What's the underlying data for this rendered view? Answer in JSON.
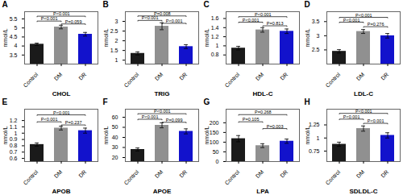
{
  "chart_data": [
    {
      "type": "bar",
      "title": "A",
      "xlabel": "CHOL",
      "ylabel": "mmol/L",
      "categories": [
        "Control",
        "DM",
        "DR"
      ],
      "values": [
        4.1,
        5.05,
        4.65
      ],
      "errors": [
        0.06,
        0.1,
        0.1
      ],
      "colors": [
        "#1a1a1a",
        "#909090",
        "#1212cc"
      ],
      "ylim": [
        3.0,
        5.9
      ],
      "yticks": [
        3.5,
        4,
        4.5,
        5,
        5.5
      ],
      "annotations": [
        {
          "text": "P<0.001",
          "from": "Control",
          "to": "DM",
          "y": 5.38
        },
        {
          "text": "P<0.001",
          "from": "Control",
          "to": "DR",
          "y": 5.65
        },
        {
          "text": "P=0.059",
          "from": "DM",
          "to": "DR",
          "y": 5.22
        }
      ]
    },
    {
      "type": "bar",
      "title": "B",
      "xlabel": "TRIG",
      "ylabel": "mmol/L",
      "categories": [
        "Control",
        "DM",
        "DR"
      ],
      "values": [
        1.35,
        2.75,
        1.7
      ],
      "errors": [
        0.08,
        0.18,
        0.1
      ],
      "colors": [
        "#1a1a1a",
        "#909090",
        "#1212cc"
      ],
      "ylim": [
        0.8,
        3.5
      ],
      "yticks": [
        1,
        1.5,
        2,
        2.5,
        3
      ],
      "annotations": [
        {
          "text": "P<0.001",
          "from": "Control",
          "to": "DM",
          "y": 3.05
        },
        {
          "text": "P=0.008",
          "from": "Control",
          "to": "DR",
          "y": 3.28
        },
        {
          "text": "P<0.001",
          "from": "DM",
          "to": "DR",
          "y": 2.9
        }
      ]
    },
    {
      "type": "bar",
      "title": "C",
      "xlabel": "HDL-C",
      "ylabel": "mmol/L",
      "categories": [
        "Control",
        "DM",
        "DR"
      ],
      "values": [
        0.95,
        1.35,
        1.32
      ],
      "errors": [
        0.04,
        0.05,
        0.05
      ],
      "colors": [
        "#1a1a1a",
        "#909090",
        "#1212cc"
      ],
      "ylim": [
        0.6,
        1.75
      ],
      "yticks": [
        0.8,
        1,
        1.2,
        1.4,
        1.6
      ],
      "annotations": [
        {
          "text": "P<0.001",
          "from": "Control",
          "to": "DM",
          "y": 1.52
        },
        {
          "text": "P<0.001",
          "from": "Control",
          "to": "DR",
          "y": 1.64
        },
        {
          "text": "P=0.813",
          "from": "DM",
          "to": "DR",
          "y": 1.44
        }
      ]
    },
    {
      "type": "bar",
      "title": "D",
      "xlabel": "LDL-C",
      "ylabel": "mmol/L",
      "categories": [
        "Control",
        "DM",
        "DR"
      ],
      "values": [
        2.45,
        3.15,
        3.0
      ],
      "errors": [
        0.06,
        0.07,
        0.08
      ],
      "colors": [
        "#1a1a1a",
        "#909090",
        "#1212cc"
      ],
      "ylim": [
        2.0,
        3.85
      ],
      "yticks": [
        2.5,
        3,
        3.5
      ],
      "annotations": [
        {
          "text": "P<0.001",
          "from": "Control",
          "to": "DM",
          "y": 3.48
        },
        {
          "text": "P<0.001",
          "from": "Control",
          "to": "DR",
          "y": 3.65
        },
        {
          "text": "P=0.276",
          "from": "DM",
          "to": "DR",
          "y": 3.32
        }
      ]
    },
    {
      "type": "bar",
      "title": "E",
      "xlabel": "APOB",
      "ylabel": "mmol/L",
      "categories": [
        "Control",
        "DM",
        "DR"
      ],
      "values": [
        0.82,
        1.08,
        1.04
      ],
      "errors": [
        0.025,
        0.03,
        0.04
      ],
      "colors": [
        "#1a1a1a",
        "#909090",
        "#1212cc"
      ],
      "ylim": [
        0.55,
        1.38
      ],
      "yticks": [
        0.6,
        0.7,
        0.8,
        0.9,
        1,
        1.1,
        1.2
      ],
      "annotations": [
        {
          "text": "P<0.001",
          "from": "Control",
          "to": "DM",
          "y": 1.18
        },
        {
          "text": "P<0.001",
          "from": "Control",
          "to": "DR",
          "y": 1.29
        },
        {
          "text": "P=0.237",
          "from": "DM",
          "to": "DR",
          "y": 1.13
        }
      ]
    },
    {
      "type": "bar",
      "title": "F",
      "xlabel": "APOE",
      "ylabel": "mmol/L",
      "categories": [
        "Control",
        "DM",
        "DR"
      ],
      "values": [
        28,
        52,
        46
      ],
      "errors": [
        1.5,
        2.5,
        2.5
      ],
      "colors": [
        "#1a1a1a",
        "#909090",
        "#1212cc"
      ],
      "ylim": [
        16,
        68
      ],
      "yticks": [
        20,
        30,
        40,
        50,
        60
      ],
      "annotations": [
        {
          "text": "P<0.001",
          "from": "Control",
          "to": "DM",
          "y": 58
        },
        {
          "text": "P<0.001",
          "from": "Control",
          "to": "DR",
          "y": 63.5
        },
        {
          "text": "P=0.099",
          "from": "DM",
          "to": "DR",
          "y": 55
        }
      ]
    },
    {
      "type": "bar",
      "title": "G",
      "xlabel": "LPA",
      "ylabel": "mmol/L",
      "categories": [
        "Control",
        "DM",
        "DR"
      ],
      "values": [
        118,
        82,
        105
      ],
      "errors": [
        16,
        10,
        11
      ],
      "colors": [
        "#1a1a1a",
        "#909090",
        "#1212cc"
      ],
      "ylim": [
        0,
        270
      ],
      "yticks": [
        0,
        50,
        100,
        150,
        200
      ],
      "annotations": [
        {
          "text": "P=0.105",
          "from": "Control",
          "to": "DM",
          "y": 205
        },
        {
          "text": "P=0.268",
          "from": "Control",
          "to": "DR",
          "y": 242
        },
        {
          "text": "P=0.003",
          "from": "DM",
          "to": "DR",
          "y": 170
        }
      ]
    },
    {
      "type": "bar",
      "title": "H",
      "xlabel": "SDLDL-C",
      "ylabel": "mmol/L",
      "categories": [
        "Control",
        "DM",
        "DR"
      ],
      "values": [
        0.88,
        1.18,
        1.05
      ],
      "errors": [
        0.04,
        0.05,
        0.05
      ],
      "colors": [
        "#1a1a1a",
        "#909090",
        "#1212cc"
      ],
      "ylim": [
        0.55,
        1.55
      ],
      "yticks": [
        0.75,
        1,
        1.25
      ],
      "annotations": [
        {
          "text": "P<0.001",
          "from": "Control",
          "to": "DM",
          "y": 1.36
        },
        {
          "text": "P<0.001",
          "from": "Control",
          "to": "DR",
          "y": 1.47
        },
        {
          "text": "P<0.001",
          "from": "DM",
          "to": "DR",
          "y": 1.28
        }
      ]
    }
  ]
}
